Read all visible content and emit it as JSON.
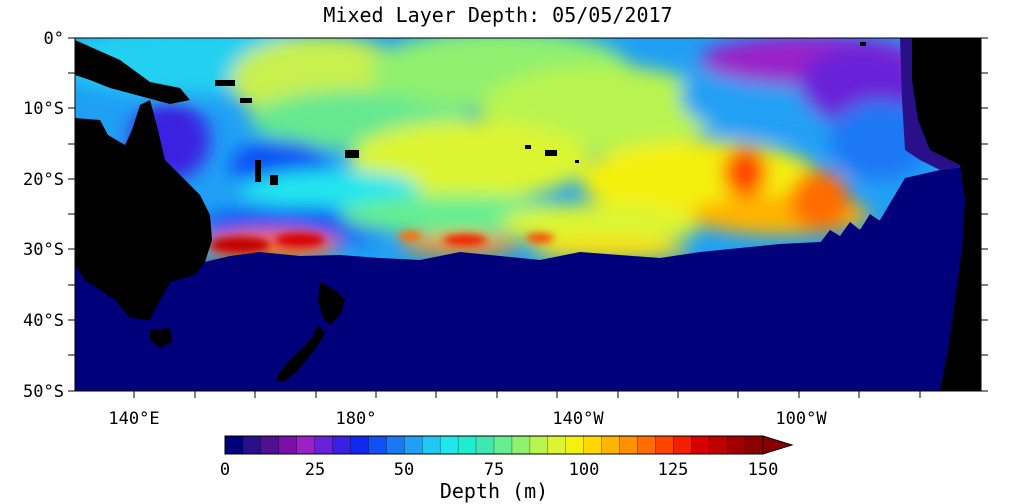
{
  "map": {
    "title": "Mixed Layer Depth: 05/05/2017",
    "latitude_labels": [
      "0°",
      "10°S",
      "20°S",
      "30°S",
      "40°S",
      "50°S"
    ],
    "longitude_labels": [
      "140°E",
      "180°",
      "140°W",
      "100°W"
    ],
    "land_color": "#000000",
    "deep_color": "#00007a"
  },
  "colorbar": {
    "tick_labels": [
      "0",
      "25",
      "50",
      "75",
      "100",
      "125",
      "150"
    ],
    "unit_label": "Depth (m)",
    "min": 0,
    "max": 150,
    "step": 5,
    "colors": [
      "#00007a",
      "#2a0f8a",
      "#50108f",
      "#7a10a8",
      "#9a20c8",
      "#6a20d8",
      "#3a20e0",
      "#1028f0",
      "#1050f5",
      "#1a78f5",
      "#20a0f5",
      "#20c8f5",
      "#20e6ee",
      "#20ecd0",
      "#3ee8b0",
      "#66ee90",
      "#90f070",
      "#b8f450",
      "#dcf530",
      "#f4f010",
      "#ffd800",
      "#ffb400",
      "#ff9000",
      "#ff6c00",
      "#ff4400",
      "#f02000",
      "#d80000",
      "#c00000",
      "#a00000",
      "#8a0000"
    ]
  }
}
